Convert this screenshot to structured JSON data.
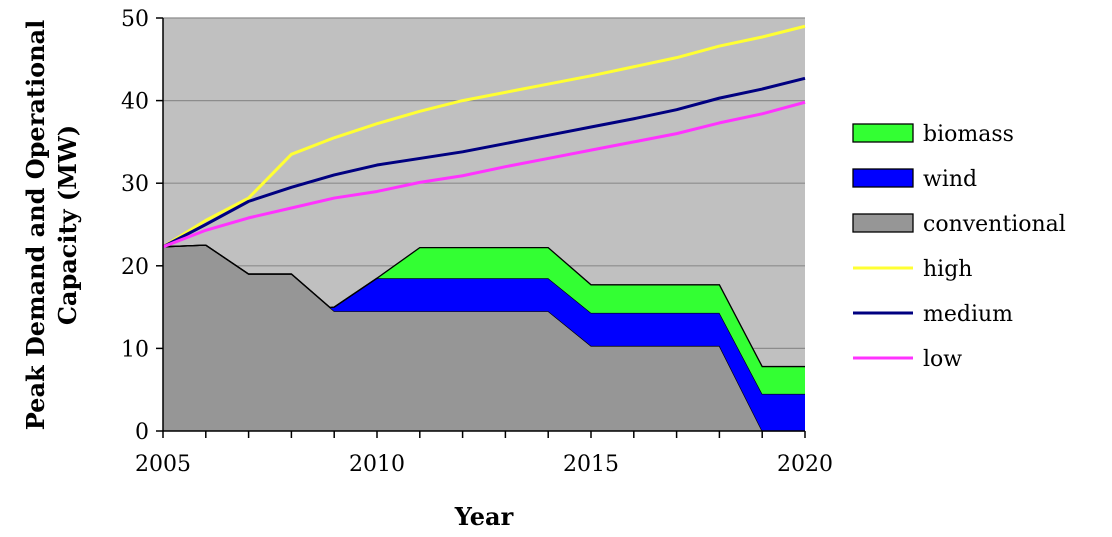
{
  "chart_data": {
    "type": "area",
    "xlabel": "Year",
    "ylabel_line1": "Peak Demand and Operational",
    "ylabel_line2": "Capacity (MW)",
    "xlim": [
      2005,
      2020
    ],
    "ylim": [
      0,
      50
    ],
    "x_ticks": [
      2005,
      2010,
      2015,
      2020
    ],
    "y_ticks": [
      0,
      10,
      20,
      30,
      40,
      50
    ],
    "grid": "horizontal",
    "legend_position": "right",
    "stacked_series": [
      {
        "name": "conventional",
        "color": "#969696",
        "points": [
          [
            2005,
            22.3
          ],
          [
            2006,
            22.5
          ],
          [
            2007,
            19
          ],
          [
            2008,
            19
          ],
          [
            2009,
            14.5
          ],
          [
            2009,
            14.5
          ],
          [
            2014,
            14.5
          ],
          [
            2015,
            10.3
          ],
          [
            2018,
            10.3
          ],
          [
            2019,
            0
          ],
          [
            2020,
            0
          ]
        ]
      },
      {
        "name": "wind",
        "color": "#0000ff",
        "points": [
          [
            2005,
            0
          ],
          [
            2008.9,
            0
          ],
          [
            2009,
            0.5
          ],
          [
            2010,
            4
          ],
          [
            2014,
            4
          ],
          [
            2015,
            4
          ],
          [
            2018,
            4
          ],
          [
            2019,
            4.5
          ],
          [
            2020,
            4.5
          ]
        ]
      },
      {
        "name": "biomass",
        "color": "#33ff33",
        "points": [
          [
            2005,
            0
          ],
          [
            2010,
            0
          ],
          [
            2011,
            3.7
          ],
          [
            2014,
            3.7
          ],
          [
            2015,
            3.4
          ],
          [
            2018,
            3.4
          ],
          [
            2019,
            3.3
          ],
          [
            2020,
            3.3
          ]
        ]
      }
    ],
    "line_series": [
      {
        "name": "high",
        "color": "#ffff33",
        "points": [
          [
            2005,
            22.3
          ],
          [
            2006,
            25.5
          ],
          [
            2007,
            28.2
          ],
          [
            2008,
            33.5
          ],
          [
            2009,
            35.5
          ],
          [
            2010,
            37.2
          ],
          [
            2011,
            38.7
          ],
          [
            2012,
            40
          ],
          [
            2013,
            41
          ],
          [
            2014,
            42
          ],
          [
            2015,
            43
          ],
          [
            2016,
            44.1
          ],
          [
            2017,
            45.2
          ],
          [
            2018,
            46.6
          ],
          [
            2019,
            47.7
          ],
          [
            2020,
            49
          ]
        ]
      },
      {
        "name": "medium",
        "color": "#000080",
        "points": [
          [
            2005,
            22.3
          ],
          [
            2006,
            25
          ],
          [
            2007,
            27.8
          ],
          [
            2008,
            29.5
          ],
          [
            2009,
            31
          ],
          [
            2010,
            32.2
          ],
          [
            2011,
            33
          ],
          [
            2012,
            33.8
          ],
          [
            2013,
            34.8
          ],
          [
            2014,
            35.8
          ],
          [
            2015,
            36.8
          ],
          [
            2016,
            37.8
          ],
          [
            2017,
            38.9
          ],
          [
            2018,
            40.3
          ],
          [
            2019,
            41.4
          ],
          [
            2020,
            42.7
          ]
        ]
      },
      {
        "name": "low",
        "color": "#ff33ff",
        "points": [
          [
            2005,
            22.3
          ],
          [
            2006,
            24.3
          ],
          [
            2007,
            25.8
          ],
          [
            2008,
            27
          ],
          [
            2009,
            28.2
          ],
          [
            2010,
            29
          ],
          [
            2011,
            30.1
          ],
          [
            2012,
            30.9
          ],
          [
            2013,
            32
          ],
          [
            2014,
            33
          ],
          [
            2015,
            34
          ],
          [
            2016,
            35
          ],
          [
            2017,
            36
          ],
          [
            2018,
            37.3
          ],
          [
            2019,
            38.4
          ],
          [
            2020,
            39.8
          ]
        ]
      }
    ],
    "legend": [
      {
        "name": "biomass",
        "kind": "area",
        "color": "#33ff33"
      },
      {
        "name": "wind",
        "kind": "area",
        "color": "#0000ff"
      },
      {
        "name": "conventional",
        "kind": "area",
        "color": "#969696"
      },
      {
        "name": "high",
        "kind": "line",
        "color": "#ffff33"
      },
      {
        "name": "medium",
        "kind": "line",
        "color": "#000080"
      },
      {
        "name": "low",
        "kind": "line",
        "color": "#ff33ff"
      }
    ],
    "plot_background": "#c0c0c0"
  }
}
